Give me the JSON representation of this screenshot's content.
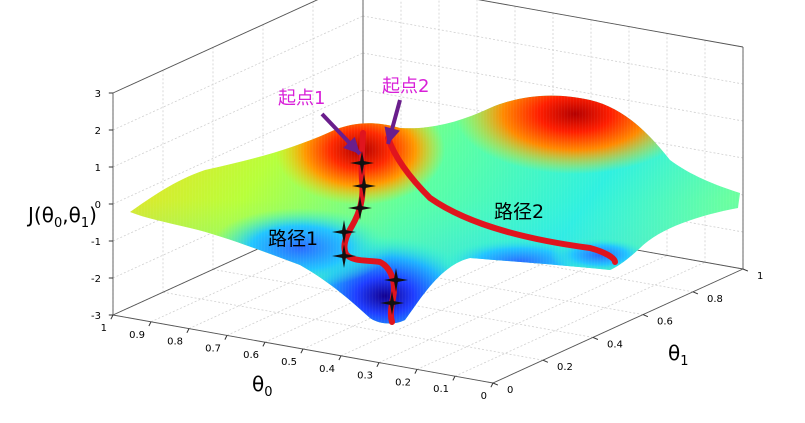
{
  "chart_data": {
    "type": "surface",
    "axes": {
      "x": {
        "label": "θ",
        "label_sub": "1",
        "ticks": [
          "0",
          "0.2",
          "0.4",
          "0.6",
          "0.8",
          "1"
        ]
      },
      "y": {
        "label": "θ",
        "label_sub": "0",
        "ticks": [
          "1",
          "0.9",
          "0.8",
          "0.7",
          "0.6",
          "0.5",
          "0.4",
          "0.3",
          "0.2",
          "0.1",
          "0"
        ]
      },
      "z": {
        "label_prefix": "J(θ",
        "label_sub1": "0",
        "label_mid": ",θ",
        "label_sub2": "1",
        "label_suffix": ")",
        "ticks": [
          "3",
          "2",
          "1",
          "0",
          "-1",
          "-2",
          "-3"
        ],
        "zlim": [
          -3,
          3
        ]
      }
    },
    "colormap": "jet",
    "annotations": {
      "start1": "起点1",
      "start2": "起点2",
      "path1": "路径1",
      "path2": "路径2"
    },
    "path_color": "#e0141e",
    "arrow_color": "#6a1e8c",
    "start_label_color": "#d81fd8",
    "paths": [
      {
        "name": "路径1",
        "points": [
          [
            0.2,
            0.48,
            1.8
          ],
          [
            0.2,
            0.44,
            0.9
          ],
          [
            0.22,
            0.42,
            -0.2
          ],
          [
            0.21,
            0.4,
            -1.3
          ],
          [
            0.24,
            0.34,
            -2.0
          ],
          [
            0.22,
            0.32,
            -2.9
          ]
        ]
      },
      {
        "name": "路径2",
        "points": [
          [
            0.24,
            0.46,
            2.0
          ],
          [
            0.38,
            0.4,
            0.6
          ],
          [
            0.6,
            0.32,
            -0.6
          ],
          [
            0.9,
            0.18,
            -1.2
          ],
          [
            1.0,
            0.1,
            -1.4
          ]
        ]
      }
    ]
  }
}
